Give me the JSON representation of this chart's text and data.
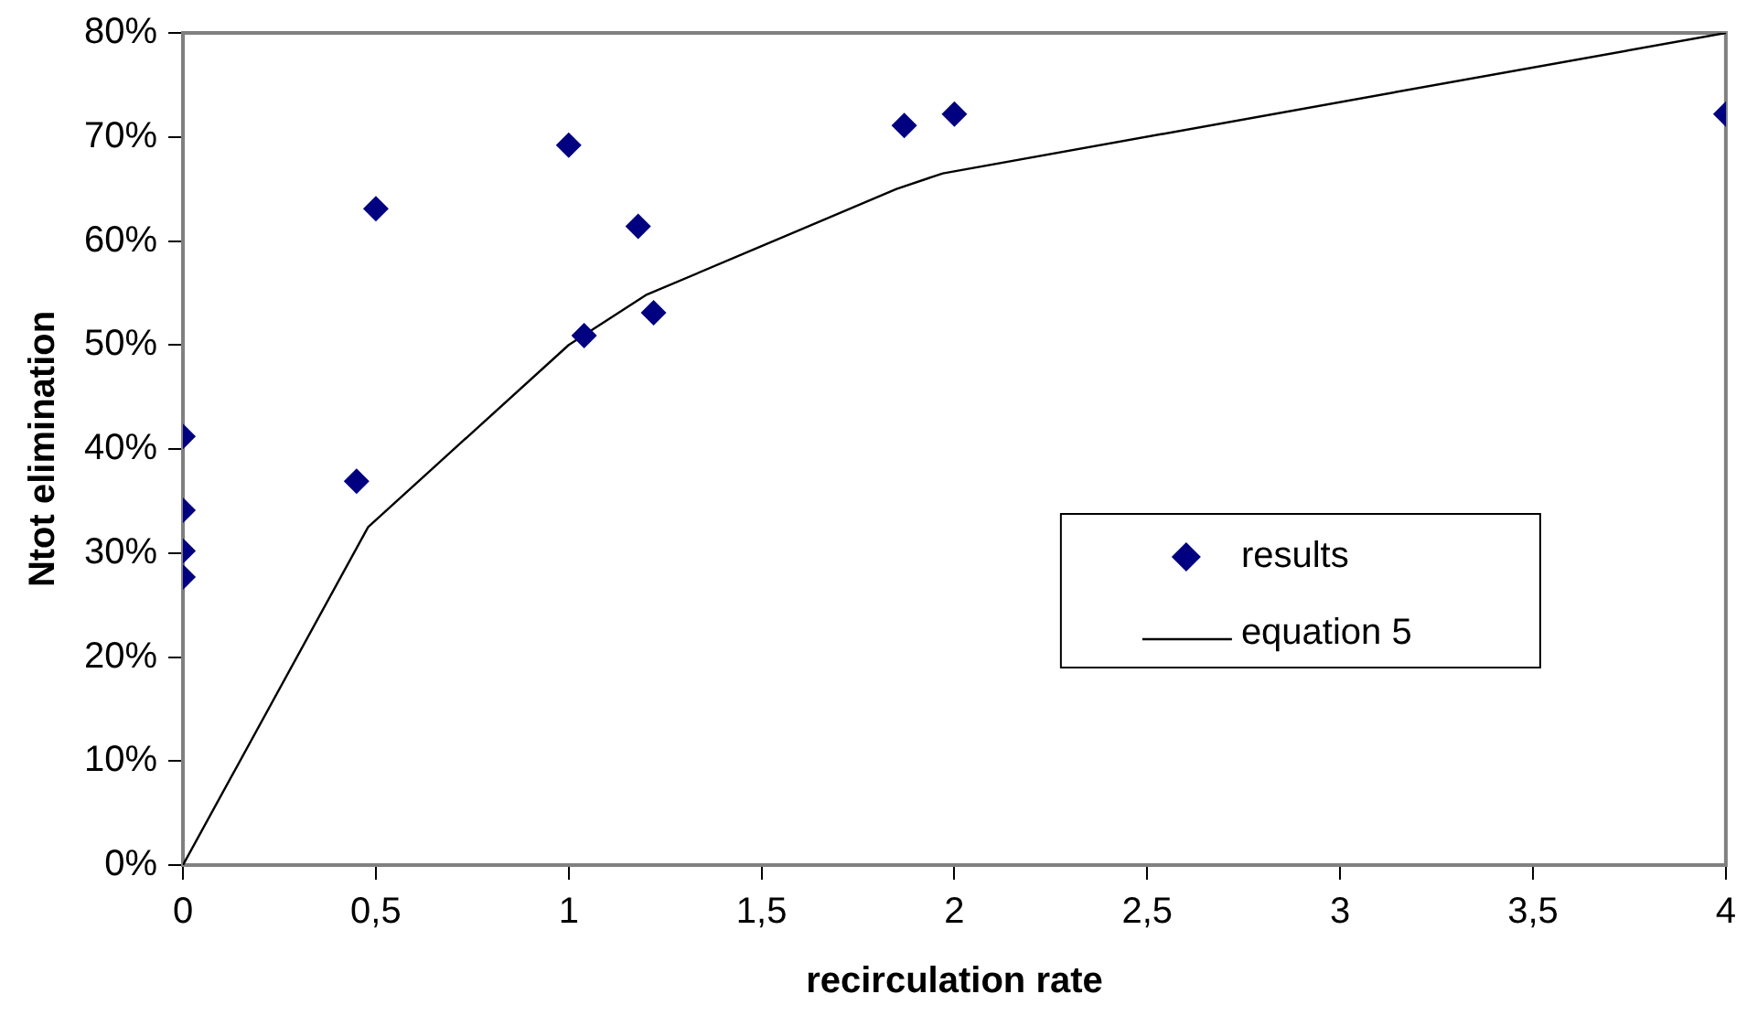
{
  "chart_data": {
    "type": "scatter",
    "xlabel": "recirculation rate",
    "ylabel": "Ntot elimination",
    "xlim": [
      0,
      4
    ],
    "xticks": [
      0,
      {
        "value": 0.5,
        "label": "0,5"
      },
      1,
      {
        "value": 1.5,
        "label": "1,5"
      },
      2,
      {
        "value": 2.5,
        "label": "2,5"
      },
      3,
      {
        "value": 3.5,
        "label": "3,5"
      },
      4
    ],
    "ylim": [
      0,
      80
    ],
    "yticks": [
      {
        "value": 0,
        "label": "0%"
      },
      {
        "value": 10,
        "label": "10%"
      },
      {
        "value": 20,
        "label": "20%"
      },
      {
        "value": 30,
        "label": "30%"
      },
      {
        "value": 40,
        "label": "40%"
      },
      {
        "value": 50,
        "label": "50%"
      },
      {
        "value": 60,
        "label": "60%"
      },
      {
        "value": 70,
        "label": "70%"
      },
      {
        "value": 80,
        "label": "80%"
      }
    ],
    "grid": false,
    "legend": "right",
    "series": [
      {
        "name": "results",
        "type": "scatter",
        "marker": "diamond",
        "color": "#000080",
        "x": [
          0,
          0,
          0,
          0,
          0.45,
          0.5,
          1,
          1.04,
          1.18,
          1.22,
          1.87,
          2,
          4
        ],
        "values": [
          41.2,
          34.1,
          30.2,
          27.7,
          36.9,
          63.1,
          69.2,
          50.9,
          61.4,
          53.1,
          71.1,
          72.2,
          72.2
        ]
      },
      {
        "name": "equation 5",
        "type": "line",
        "marker": "none",
        "line_style": "solid",
        "color": "#000000",
        "x": [
          0,
          0.48,
          1,
          1.2,
          1.5,
          1.85,
          1.97,
          4
        ],
        "values": [
          0,
          32.5,
          50,
          54.8,
          59.5,
          65,
          66.5,
          80
        ]
      }
    ]
  }
}
